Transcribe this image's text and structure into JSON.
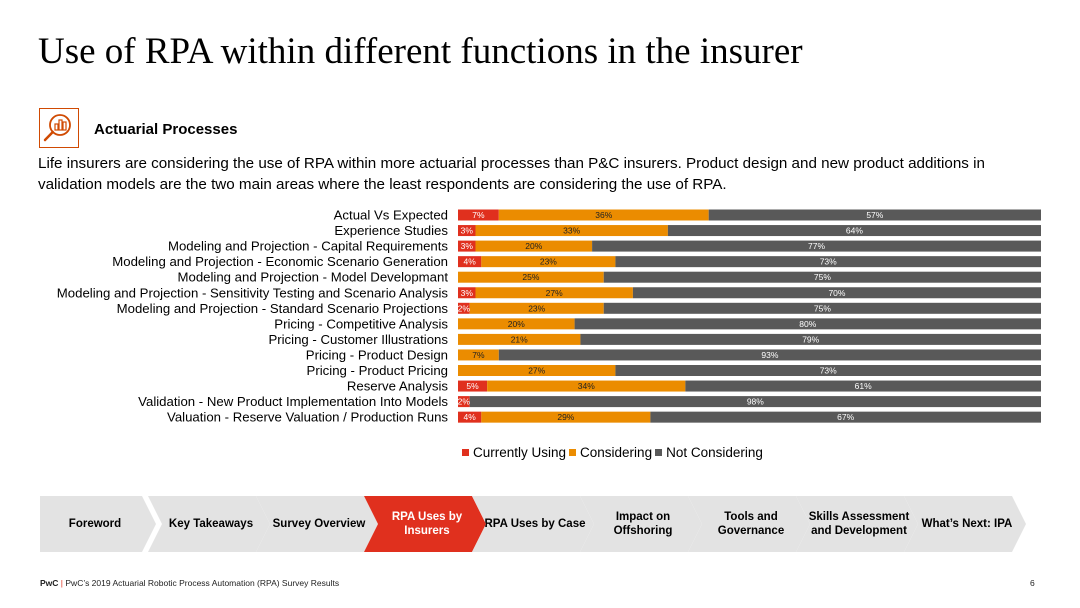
{
  "title": "Use of RPA within different functions in the insurer",
  "section": {
    "icon": "analytics-magnifier-icon",
    "heading": "Actuarial Processes"
  },
  "description": "Life insurers are considering the use of RPA within more actuarial processes than P&C insurers. Product design and new product additions in validation models are the two main areas where the least respondents are considering the use of RPA.",
  "chart_data": {
    "type": "bar",
    "orientation": "horizontal",
    "stacked": true,
    "normalized_percent": true,
    "categories": [
      "Actual Vs Expected",
      "Experience Studies",
      "Modeling and Projection - Capital Requirements",
      "Modeling and Projection - Economic Scenario Generation",
      "Modeling and Projection - Model Developmant",
      "Modeling and Projection - Sensitivity Testing and Scenario Analysis",
      "Modeling and Projection - Standard Scenario Projections",
      "Pricing - Competitive Analysis",
      "Pricing - Customer Illustrations",
      "Pricing - Product Design",
      "Pricing - Product Pricing",
      "Reserve Analysis",
      "Validation - New Product Implementation Into Models",
      "Valuation - Reserve Valuation / Production Runs"
    ],
    "series": [
      {
        "name": "Currently Using",
        "color": "#e0301e",
        "values": [
          7,
          3,
          3,
          4,
          0,
          3,
          2,
          0,
          0,
          0,
          0,
          5,
          2,
          4
        ]
      },
      {
        "name": "Considering",
        "color": "#eb8c00",
        "values": [
          36,
          33,
          20,
          23,
          25,
          27,
          23,
          20,
          21,
          7,
          27,
          34,
          0,
          29
        ]
      },
      {
        "name": "Not Considering",
        "color": "#595959",
        "values": [
          57,
          64,
          77,
          73,
          75,
          70,
          75,
          80,
          79,
          93,
          73,
          61,
          98,
          67
        ]
      }
    ],
    "data_labels": true,
    "label_suffix": "%",
    "legend_position": "bottom",
    "xlim": [
      0,
      100
    ]
  },
  "nav": {
    "items": [
      {
        "label": "Foreword",
        "active": false
      },
      {
        "label": "Key Takeaways",
        "active": false
      },
      {
        "label": "Survey Overview",
        "active": false
      },
      {
        "label": "RPA Uses by Insurers",
        "active": true
      },
      {
        "label": "RPA Uses by Case",
        "active": false
      },
      {
        "label": "Impact on Offshoring",
        "active": false
      },
      {
        "label": "Tools and Governance",
        "active": false
      },
      {
        "label": "Skills Assessment and Development",
        "active": false
      },
      {
        "label": "What’s Next: IPA",
        "active": false
      }
    ]
  },
  "footer": {
    "brand": "PwC",
    "separator": "|",
    "text": "PwC’s 2019 Actuarial Robotic Process Automation (RPA) Survey Results",
    "page_number": "6"
  }
}
